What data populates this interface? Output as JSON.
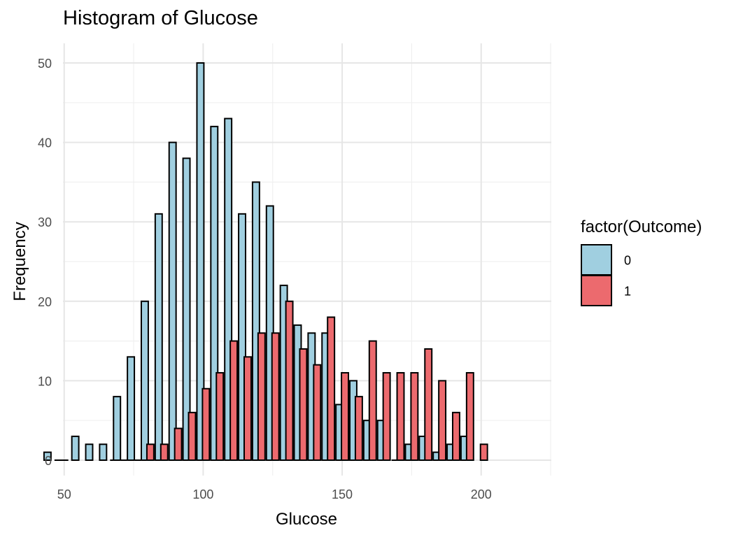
{
  "chart_data": {
    "type": "bar",
    "title": "Histogram of Glucose",
    "xlabel": "Glucose",
    "ylabel": "Frequency",
    "xlim": [
      40,
      206
    ],
    "ylim": [
      0,
      52
    ],
    "xticks": [
      50,
      100,
      150,
      200
    ],
    "yticks": [
      0,
      10,
      20,
      30,
      40,
      50
    ],
    "grid": true,
    "bin_width": 5,
    "legend": {
      "title": "factor(Outcome)",
      "position": "right",
      "entries": [
        {
          "label": "0",
          "color": "#a0cfe0"
        },
        {
          "label": "1",
          "color": "#ec6a6e"
        }
      ]
    },
    "series": [
      {
        "name": "0",
        "color": "#a0cfe0",
        "bins": [
          {
            "x": 44,
            "y": 1
          },
          {
            "x": 54,
            "y": 3
          },
          {
            "x": 59,
            "y": 2
          },
          {
            "x": 64,
            "y": 2
          },
          {
            "x": 69,
            "y": 8
          },
          {
            "x": 74,
            "y": 13
          },
          {
            "x": 79,
            "y": 20
          },
          {
            "x": 84,
            "y": 31
          },
          {
            "x": 89,
            "y": 40
          },
          {
            "x": 94,
            "y": 38
          },
          {
            "x": 99,
            "y": 50
          },
          {
            "x": 104,
            "y": 42
          },
          {
            "x": 109,
            "y": 43
          },
          {
            "x": 114,
            "y": 31
          },
          {
            "x": 119,
            "y": 35
          },
          {
            "x": 124,
            "y": 32
          },
          {
            "x": 129,
            "y": 22
          },
          {
            "x": 134,
            "y": 17
          },
          {
            "x": 139,
            "y": 16
          },
          {
            "x": 144,
            "y": 16
          },
          {
            "x": 149,
            "y": 7
          },
          {
            "x": 154,
            "y": 10
          },
          {
            "x": 159,
            "y": 5
          },
          {
            "x": 164,
            "y": 5
          },
          {
            "x": 169,
            "y": 0
          },
          {
            "x": 174,
            "y": 2
          },
          {
            "x": 179,
            "y": 3
          },
          {
            "x": 184,
            "y": 1
          },
          {
            "x": 189,
            "y": 2
          },
          {
            "x": 194,
            "y": 3
          }
        ]
      },
      {
        "name": "1",
        "color": "#ec6a6e",
        "bins": [
          {
            "x": 81,
            "y": 2
          },
          {
            "x": 86,
            "y": 2
          },
          {
            "x": 91,
            "y": 4
          },
          {
            "x": 96,
            "y": 6
          },
          {
            "x": 101,
            "y": 9
          },
          {
            "x": 106,
            "y": 11
          },
          {
            "x": 111,
            "y": 15
          },
          {
            "x": 116,
            "y": 13
          },
          {
            "x": 121,
            "y": 16
          },
          {
            "x": 126,
            "y": 16
          },
          {
            "x": 131,
            "y": 20
          },
          {
            "x": 136,
            "y": 14
          },
          {
            "x": 141,
            "y": 12
          },
          {
            "x": 146,
            "y": 18
          },
          {
            "x": 151,
            "y": 11
          },
          {
            "x": 156,
            "y": 8
          },
          {
            "x": 161,
            "y": 15
          },
          {
            "x": 166,
            "y": 11
          },
          {
            "x": 171,
            "y": 11
          },
          {
            "x": 176,
            "y": 11
          },
          {
            "x": 181,
            "y": 14
          },
          {
            "x": 186,
            "y": 10
          },
          {
            "x": 191,
            "y": 6
          },
          {
            "x": 196,
            "y": 11
          },
          {
            "x": 201,
            "y": 2
          }
        ]
      }
    ]
  }
}
